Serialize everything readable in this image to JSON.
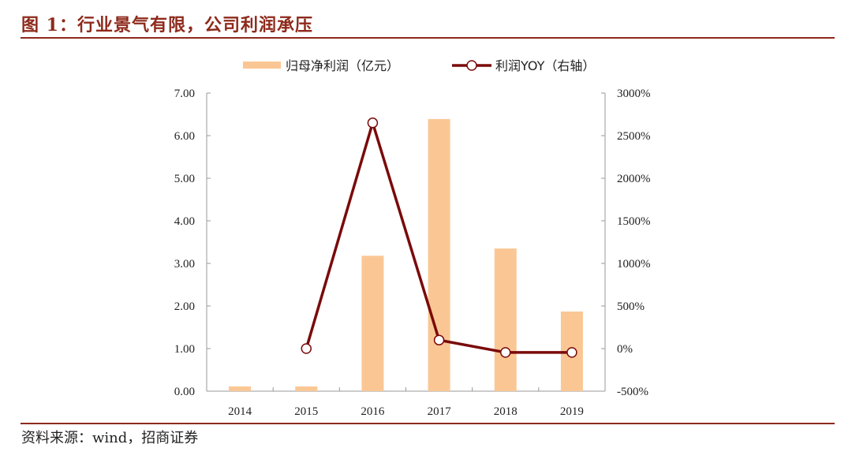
{
  "title": "图 1：行业景气有限，公司利润承压",
  "source": "资料来源：wind，招商证券",
  "colors": {
    "title": "#8e2a1c",
    "bar": "#fac794",
    "line": "#7a0a0a"
  },
  "chart_data": {
    "type": "bar+line",
    "categories": [
      "2014",
      "2015",
      "2016",
      "2017",
      "2018",
      "2019"
    ],
    "series": [
      {
        "name": "归母净利润（亿元）",
        "type": "bar",
        "axis": "left",
        "values": [
          0.11,
          0.11,
          3.18,
          6.39,
          3.35,
          1.87
        ]
      },
      {
        "name": "利润YOY（右轴）",
        "type": "line",
        "axis": "right",
        "values": [
          null,
          0,
          2650,
          100,
          -45,
          -45
        ]
      }
    ],
    "left_axis": {
      "ylim": [
        0,
        7
      ],
      "ticks": [
        "0.00",
        "1.00",
        "2.00",
        "3.00",
        "4.00",
        "5.00",
        "6.00",
        "7.00"
      ]
    },
    "right_axis": {
      "ylim": [
        -500,
        3000
      ],
      "ticks": [
        "-500%",
        "0%",
        "500%",
        "1000%",
        "1500%",
        "2000%",
        "2500%",
        "3000%"
      ]
    },
    "grid": false,
    "legend": "top-center"
  }
}
